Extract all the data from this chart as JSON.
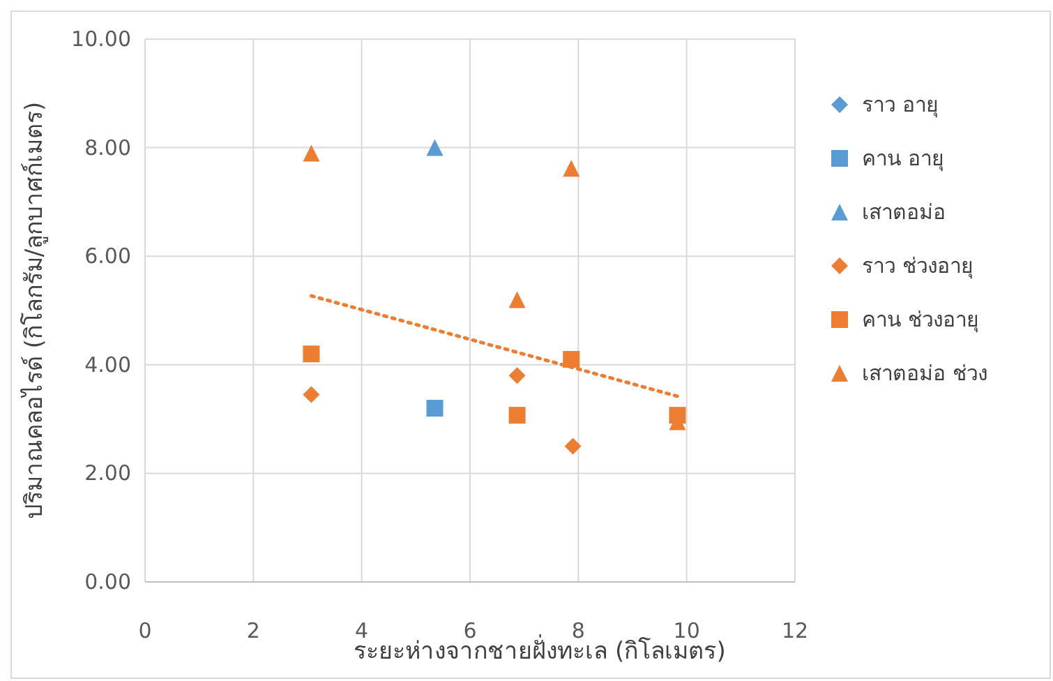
{
  "chart_data": {
    "type": "scatter",
    "xlabel": "ระยะห่างจากชายฝั่งทะเล (กิโลเมตร)",
    "ylabel": "ปริมาณคลอไรด์ (กิโลกรัม/ลูกบาศก์เมตร)",
    "xlim": [
      0,
      12
    ],
    "xticks": [
      0,
      2,
      4,
      6,
      8,
      10,
      12
    ],
    "ylim": [
      0,
      10
    ],
    "yticks": [
      {
        "value": 0,
        "label": "0.00"
      },
      {
        "value": 2,
        "label": "2.00"
      },
      {
        "value": 4,
        "label": "4.00"
      },
      {
        "value": 6,
        "label": "6.00"
      },
      {
        "value": 8,
        "label": "8.00"
      },
      {
        "value": 10,
        "label": "10.00"
      }
    ],
    "grid": true,
    "legend": "right",
    "series": [
      {
        "name": "ราว อายุ",
        "color": "#5b9bd5",
        "marker": "diamond"
      },
      {
        "name": "คาน อายุ",
        "color": "#5b9bd5",
        "marker": "square",
        "x": [
          5.35
        ],
        "values": [
          3.2
        ]
      },
      {
        "name": "เสาตอม่อ",
        "color": "#5b9bd5",
        "marker": "triangle",
        "x": [
          5.35
        ],
        "values": [
          8.0
        ]
      },
      {
        "name": "ราว ช่วงอายุ",
        "color": "#ed7d31",
        "marker": "diamond",
        "x": [
          3.07,
          6.87,
          7.9
        ],
        "values": [
          3.45,
          3.8,
          2.5
        ]
      },
      {
        "name": "คาน ช่วงอายุ",
        "color": "#ed7d31",
        "marker": "square",
        "x": [
          3.07,
          6.87,
          7.87,
          9.83
        ],
        "values": [
          4.2,
          3.07,
          4.1,
          3.07
        ]
      },
      {
        "name": "เสาตอม่อ ช่วง",
        "color": "#ed7d31",
        "marker": "triangle",
        "x": [
          3.07,
          6.87,
          7.87,
          9.83
        ],
        "values": [
          7.9,
          5.2,
          7.62,
          2.95
        ]
      },
      {
        "type": "line",
        "color": "#ed7d31",
        "marker": "none",
        "line_style": "dotted",
        "x": [
          3.07,
          9.83
        ],
        "values": [
          5.27,
          3.42
        ]
      }
    ]
  }
}
